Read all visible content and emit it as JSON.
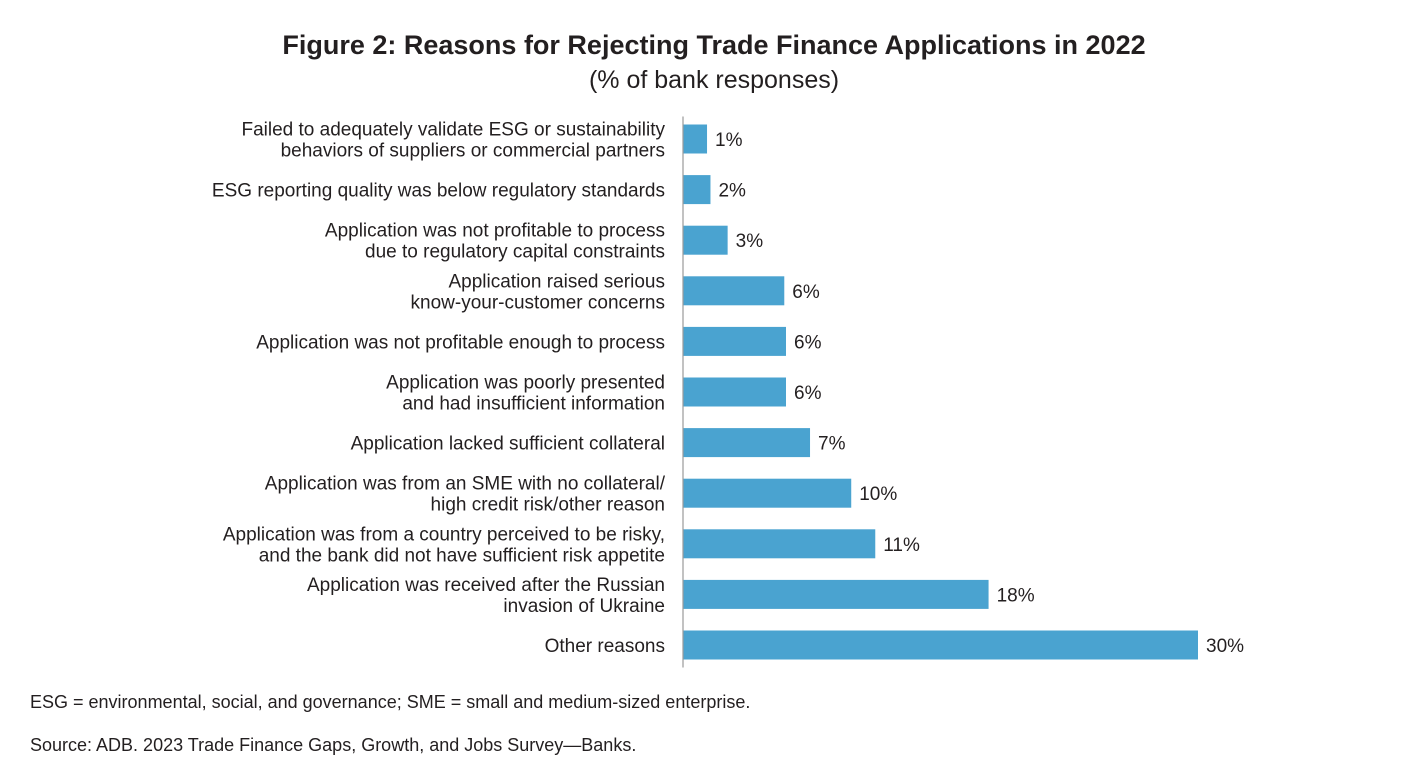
{
  "chart_data": {
    "type": "bar",
    "orientation": "horizontal",
    "title": "Figure 2: Reasons for Rejecting Trade Finance Applications in 2022",
    "subtitle": "(% of bank responses)",
    "value_suffix": "%",
    "xlim": [
      0,
      30
    ],
    "grid": false,
    "categories": [
      [
        "Failed to adequately validate ESG or sustainability",
        "behaviors of suppliers or commercial partners"
      ],
      [
        "ESG reporting quality was below regulatory standards"
      ],
      [
        "Application was not profitable to process",
        "due to regulatory capital constraints"
      ],
      [
        "Application raised serious",
        "know-your-customer concerns"
      ],
      [
        "Application was not profitable enough to process"
      ],
      [
        "Application was poorly presented",
        "and had insufficient information"
      ],
      [
        "Application lacked sufficient collateral"
      ],
      [
        "Application was from an SME with no collateral/",
        "high credit risk/other reason"
      ],
      [
        "Application was from a country perceived to be risky,",
        "and the bank did not have sufficient risk appetite"
      ],
      [
        "Application was received after the Russian",
        "invasion of Ukraine"
      ],
      [
        "Other reasons"
      ]
    ],
    "values": [
      1.4,
      1.6,
      2.6,
      5.9,
      6.0,
      6.0,
      7.4,
      9.8,
      11.2,
      17.8,
      30.0
    ],
    "value_labels": [
      "1%",
      "2%",
      "3%",
      "6%",
      "6%",
      "6%",
      "7%",
      "10%",
      "11%",
      "18%",
      "30%"
    ],
    "bar_color": "#4aa3d0"
  },
  "notes": {
    "abbreviations": "ESG = environmental, social, and governance; SME = small and medium-sized enterprise.",
    "source": "Source: ADB. 2023 Trade Finance Gaps, Growth, and Jobs Survey—Banks."
  }
}
